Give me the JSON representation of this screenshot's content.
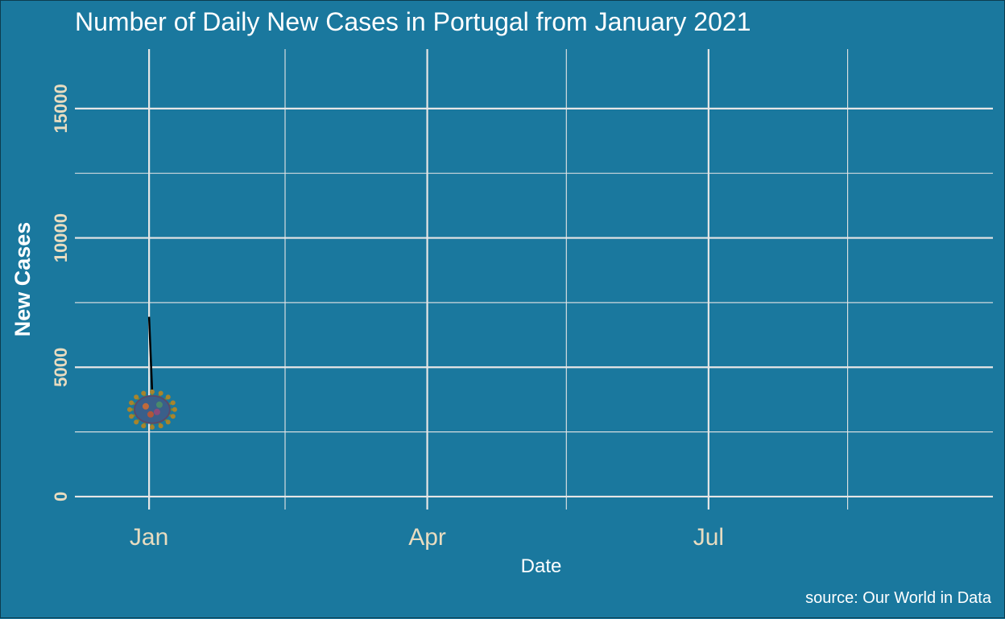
{
  "chart_data": {
    "type": "line",
    "title": "Number of Daily New Cases in Portugal from January 2021",
    "xlabel": "Date",
    "ylabel": "New Cases",
    "caption": "source: Our World in Data",
    "x_ticks": [
      {
        "label": "Jan",
        "date": "2021-01-01"
      },
      {
        "label": "Apr",
        "date": "2021-04-01"
      },
      {
        "label": "Jul",
        "date": "2021-07-01"
      }
    ],
    "x_minor": [
      "2021-02-14",
      "2021-05-16",
      "2021-08-15"
    ],
    "xlim": [
      "2020-12-08",
      "2021-10-01"
    ],
    "y_ticks": [
      0,
      5000,
      10000,
      15000
    ],
    "y_minor": [
      2500,
      7500,
      12500
    ],
    "ylim": [
      -500,
      17300
    ],
    "grid": true,
    "series": [
      {
        "x": [
          "2021-01-01",
          "2021-01-02"
        ],
        "values": [
          6950,
          4050
        ]
      }
    ],
    "marker": "virus-icon",
    "colors": {
      "background": "#1a789e",
      "grid": "#e6e6e6",
      "line": "#000000",
      "tick_label": "#e8dcc0",
      "text": "#ffffff"
    }
  }
}
